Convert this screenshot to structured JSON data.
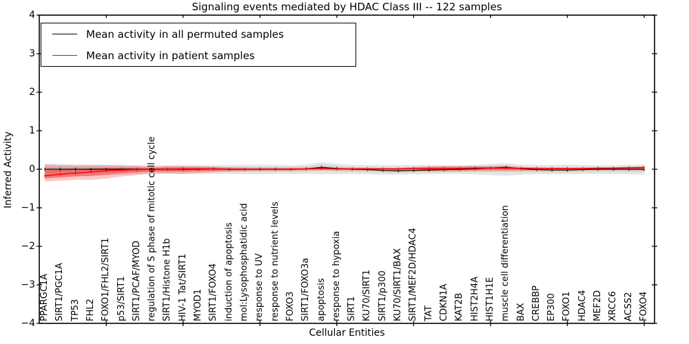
{
  "chart_data": {
    "type": "line",
    "title": "Signaling events mediated by HDAC Class III -- 122 samples",
    "xlabel": "Cellular Entities",
    "ylabel": "Inferred Activity",
    "ylim": [
      -4,
      4
    ],
    "yticks": [
      4,
      3,
      2,
      1,
      0,
      -1,
      -2,
      -3,
      -4
    ],
    "xtick_indices": [
      4,
      9,
      14,
      19,
      24,
      29,
      34,
      39
    ],
    "grid": false,
    "legend": {
      "position": "upper left",
      "items": [
        {
          "label": "Mean activity in all permuted samples",
          "color": "#000000"
        },
        {
          "label": "Mean activity in patient samples",
          "color": "#ff0000"
        }
      ]
    },
    "categories": [
      "PPARGC1A",
      "SIRT1/PGC1A",
      "TP53",
      "FHL2",
      "FOXO1/FHL2/SIRT1",
      "p53/SIRT1",
      "SIRT1/PCAF/MYOD",
      "regulation of S phase of mitotic cell cycle",
      "SIRT1/Histone H1b",
      "HIV-1 Tat/SIRT1",
      "MYOD1",
      "SIRT1/FOXO4",
      "induction of apoptosis",
      "mol:Lysophosphatidic acid",
      "response to UV",
      "response to nutrient levels",
      "FOXO3",
      "SIRT1/FOXO3a",
      "apoptosis",
      "response to hypoxia",
      "SIRT1",
      "KU70/SIRT1",
      "SIRT1/p300",
      "KU70/SIRT1/BAX",
      "SIRT1/MEF2D/HDAC4",
      "TAT",
      "CDKN1A",
      "KAT2B",
      "HIST2H4A",
      "HIST1H1E",
      "muscle cell differentiation",
      "BAX",
      "CREBBP",
      "EP300",
      "FOXO1",
      "HDAC4",
      "MEF2D",
      "XRCC6",
      "ACSS2",
      "FOXO4"
    ],
    "series": [
      {
        "name": "Mean activity in all permuted samples",
        "color": "#000000",
        "values": [
          0,
          0,
          0,
          0,
          0,
          0,
          0,
          0,
          0,
          0,
          0,
          0.01,
          0,
          0,
          0,
          0,
          0,
          0.01,
          0.05,
          0.02,
          0,
          -0.01,
          -0.03,
          -0.04,
          -0.03,
          -0.02,
          -0.01,
          0,
          0.01,
          0.03,
          0.05,
          0.01,
          -0.01,
          -0.02,
          -0.02,
          -0.01,
          0,
          0,
          0,
          0
        ]
      },
      {
        "name": "Mean activity in patient samples",
        "color": "#ff0000",
        "values": [
          -0.17,
          -0.13,
          -0.1,
          -0.07,
          -0.04,
          -0.02,
          -0.01,
          0,
          0,
          0.01,
          0.01,
          0.01,
          0,
          0,
          0,
          0,
          0,
          0.01,
          0.02,
          0.01,
          0.01,
          0.01,
          0.01,
          0.01,
          0.02,
          0.02,
          0.02,
          0.02,
          0.03,
          0.03,
          0.03,
          0.02,
          0.02,
          0.02,
          0.02,
          0.02,
          0.03,
          0.03,
          0.04,
          0.05
        ]
      }
    ],
    "bands": [
      {
        "name": "permuted-std-band",
        "series": 0,
        "color": "#aaaaaa",
        "upper": [
          0.14,
          0.13,
          0.12,
          0.12,
          0.11,
          0.11,
          0.1,
          0.1,
          0.1,
          0.1,
          0.1,
          0.1,
          0.11,
          0.11,
          0.12,
          0.11,
          0.1,
          0.12,
          0.18,
          0.14,
          0.11,
          0.11,
          0.11,
          0.11,
          0.11,
          0.11,
          0.1,
          0.1,
          0.11,
          0.14,
          0.16,
          0.12,
          0.11,
          0.11,
          0.12,
          0.11,
          0.1,
          0.1,
          0.11,
          0.12
        ],
        "lower": [
          -0.22,
          -0.2,
          -0.18,
          -0.17,
          -0.15,
          -0.14,
          -0.13,
          -0.12,
          -0.12,
          -0.12,
          -0.12,
          -0.12,
          -0.12,
          -0.13,
          -0.13,
          -0.12,
          -0.12,
          -0.12,
          -0.13,
          -0.13,
          -0.12,
          -0.13,
          -0.14,
          -0.14,
          -0.13,
          -0.13,
          -0.12,
          -0.12,
          -0.13,
          -0.15,
          -0.17,
          -0.14,
          -0.13,
          -0.13,
          -0.13,
          -0.12,
          -0.12,
          -0.12,
          -0.13,
          -0.14
        ]
      },
      {
        "name": "patient-std-band",
        "series": 1,
        "color": "#ff0000",
        "upper": [
          0.12,
          0.11,
          0.1,
          0.11,
          0.11,
          0.1,
          0.09,
          0.07,
          0.09,
          0.09,
          0.08,
          0.07,
          0.05,
          0.04,
          0.04,
          0.04,
          0.04,
          0.04,
          0.05,
          0.04,
          0.04,
          0.04,
          0.04,
          0.04,
          0.06,
          0.08,
          0.09,
          0.09,
          0.09,
          0.08,
          0.09,
          0.06,
          0.05,
          0.04,
          0.04,
          0.04,
          0.04,
          0.05,
          0.06,
          0.07
        ],
        "lower": [
          -0.32,
          -0.3,
          -0.27,
          -0.28,
          -0.24,
          -0.19,
          -0.15,
          -0.11,
          -0.11,
          -0.12,
          -0.1,
          -0.08,
          -0.06,
          -0.05,
          -0.04,
          -0.04,
          -0.04,
          -0.03,
          -0.03,
          -0.03,
          -0.03,
          -0.03,
          -0.03,
          -0.03,
          -0.04,
          -0.05,
          -0.06,
          -0.06,
          -0.05,
          -0.05,
          -0.05,
          -0.04,
          -0.03,
          -0.02,
          -0.02,
          -0.02,
          -0.02,
          -0.02,
          -0.02,
          -0.03
        ]
      }
    ]
  }
}
